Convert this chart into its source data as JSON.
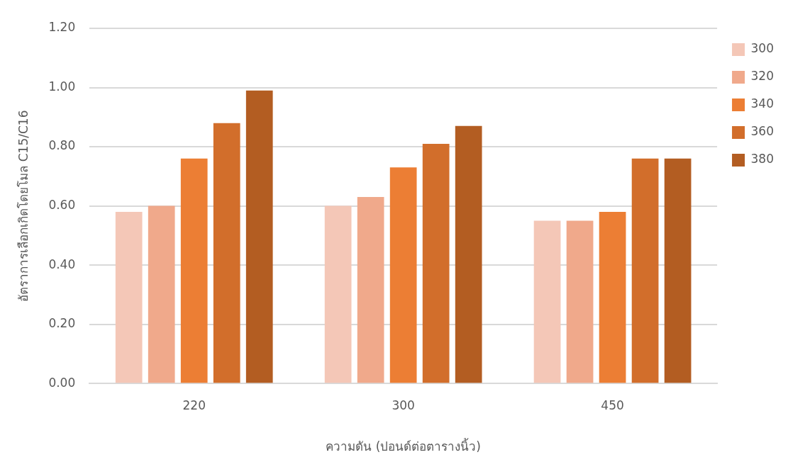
{
  "chart_data": {
    "type": "bar",
    "xlabel": "ความดัน (ปอนด์ต่อตารางนิ้ว)",
    "ylabel": "อัตราการเลือกเกิดโดยโมล C15/C16",
    "categories": [
      "220",
      "300",
      "450"
    ],
    "series": [
      {
        "name": "300",
        "color": "#f4c7b7",
        "values": [
          0.58,
          0.6,
          0.55
        ]
      },
      {
        "name": "320",
        "color": "#f0a98b",
        "values": [
          0.6,
          0.63,
          0.55
        ]
      },
      {
        "name": "340",
        "color": "#ec7e34",
        "values": [
          0.76,
          0.73,
          0.58
        ]
      },
      {
        "name": "360",
        "color": "#d26e2b",
        "values": [
          0.88,
          0.81,
          0.76
        ]
      },
      {
        "name": "380",
        "color": "#b35d22",
        "values": [
          0.99,
          0.87,
          0.76
        ]
      }
    ],
    "ylim": [
      0,
      1.2
    ],
    "yticks": [
      {
        "value": 0,
        "label": "0.00"
      },
      {
        "value": 0.2,
        "label": "0.20"
      },
      {
        "value": 0.4,
        "label": "0.40"
      },
      {
        "value": 0.6,
        "label": "0.60"
      },
      {
        "value": 0.8,
        "label": "0.80"
      },
      {
        "value": 1,
        "label": "1.00"
      },
      {
        "value": 1.2,
        "label": "1.20"
      }
    ],
    "grid": "y",
    "legend": "right"
  }
}
